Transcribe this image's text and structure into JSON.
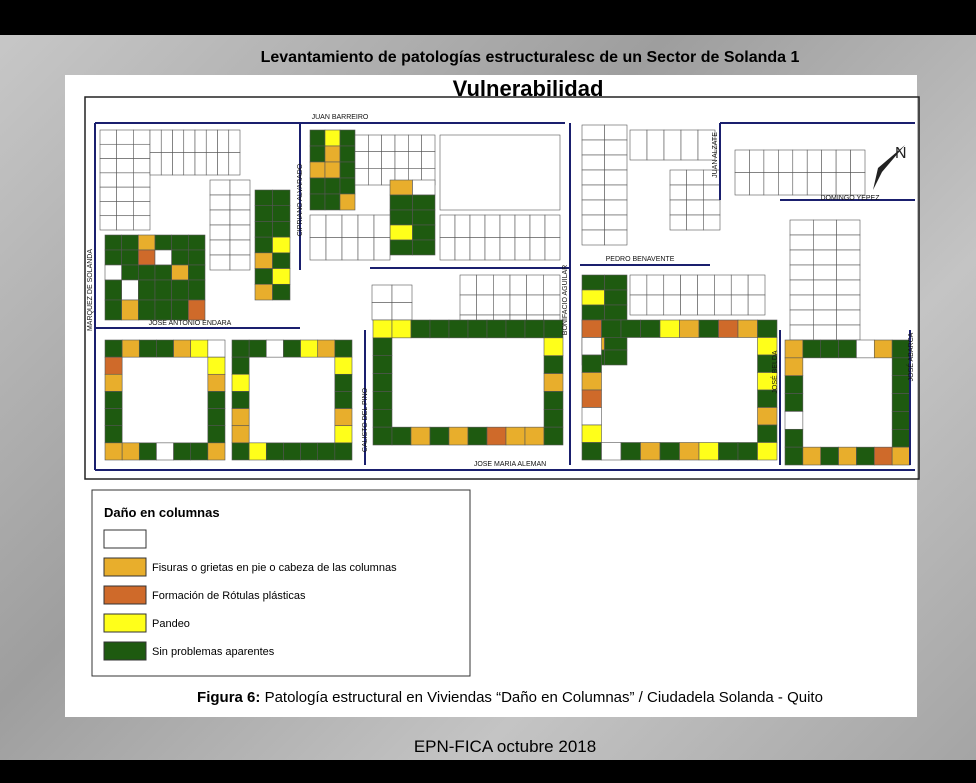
{
  "header": {
    "title": "Levantamiento de patologías estructuralesc de un Sector de Solanda 1",
    "subtitle": "Vulnerabilidad"
  },
  "streets": [
    "JUAN BARREIRO",
    "CIPRIANO ALVARADO",
    "JUAN ALZATE",
    "DOMINGO YEPEZ",
    "MARQUEZ DE SOLANDA",
    "JOSE ANTONIO ENDARA",
    "BONIFACIO AGUILAR",
    "PEDRO BENAVENTE",
    "CALISTO DEL PINO",
    "JOSE MARIA ALEMAN",
    "JOSÉ BELDA",
    "JOSÉ ABARCA"
  ],
  "legend": {
    "title": "Daño en columnas",
    "items": [
      {
        "color": "#ffffff"
      },
      {
        "label": "Fisuras o grietas en pie o cabeza de las columnas",
        "color": "#e8ae2c"
      },
      {
        "label": "Formación de Rótulas plásticas",
        "color": "#cf6a2a"
      },
      {
        "label": "Pandeo",
        "color": "#ffff1a"
      },
      {
        "label": "Sin problemas aparentes",
        "color": "#1e5a10"
      }
    ]
  },
  "caption": {
    "label": "Figura 6:",
    "text": "Patología estructural en Viviendas “Daño en Columnas” / Ciudadela Solanda - Quito"
  },
  "footer": "EPN-FICA octubre 2018"
}
